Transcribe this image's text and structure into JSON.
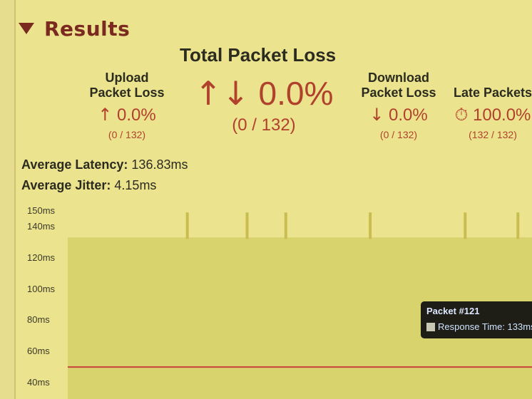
{
  "results": {
    "title": "Results"
  },
  "total": {
    "title": "Total Packet Loss",
    "value": "0.0%",
    "sub": "(0 / 132)"
  },
  "upload": {
    "label_line1": "Upload",
    "label_line2": "Packet Loss",
    "value": "0.0%",
    "sub": "(0 / 132)"
  },
  "download": {
    "label_line1": "Download",
    "label_line2": "Packet Loss",
    "value": "0.0%",
    "sub": "(0 / 132)"
  },
  "late": {
    "label": "Late Packets",
    "value": "100.0%",
    "sub": "(132 / 132)"
  },
  "averages": {
    "latency_label": "Average Latency:",
    "latency_value": "136.83ms",
    "jitter_label": "Average Jitter:",
    "jitter_value": "4.15ms"
  },
  "chart_data": {
    "type": "area",
    "y_ticks": [
      "150ms",
      "140ms",
      "120ms",
      "100ms",
      "80ms",
      "60ms",
      "40ms"
    ],
    "ylim": [
      35,
      152
    ],
    "baseline_ms": 133,
    "spikes": [
      {
        "packet": 34
      },
      {
        "packet": 51
      },
      {
        "packet": 62
      },
      {
        "packet": 86
      },
      {
        "packet": 113
      },
      {
        "packet": 128
      }
    ],
    "threshold_line_ms": 50,
    "colors": {
      "area": "#d9d36d",
      "spike": "#c9bd52",
      "threshold": "#c9423a"
    }
  },
  "tooltip": {
    "title": "Packet #121",
    "label": "Response Time: 133ms"
  }
}
